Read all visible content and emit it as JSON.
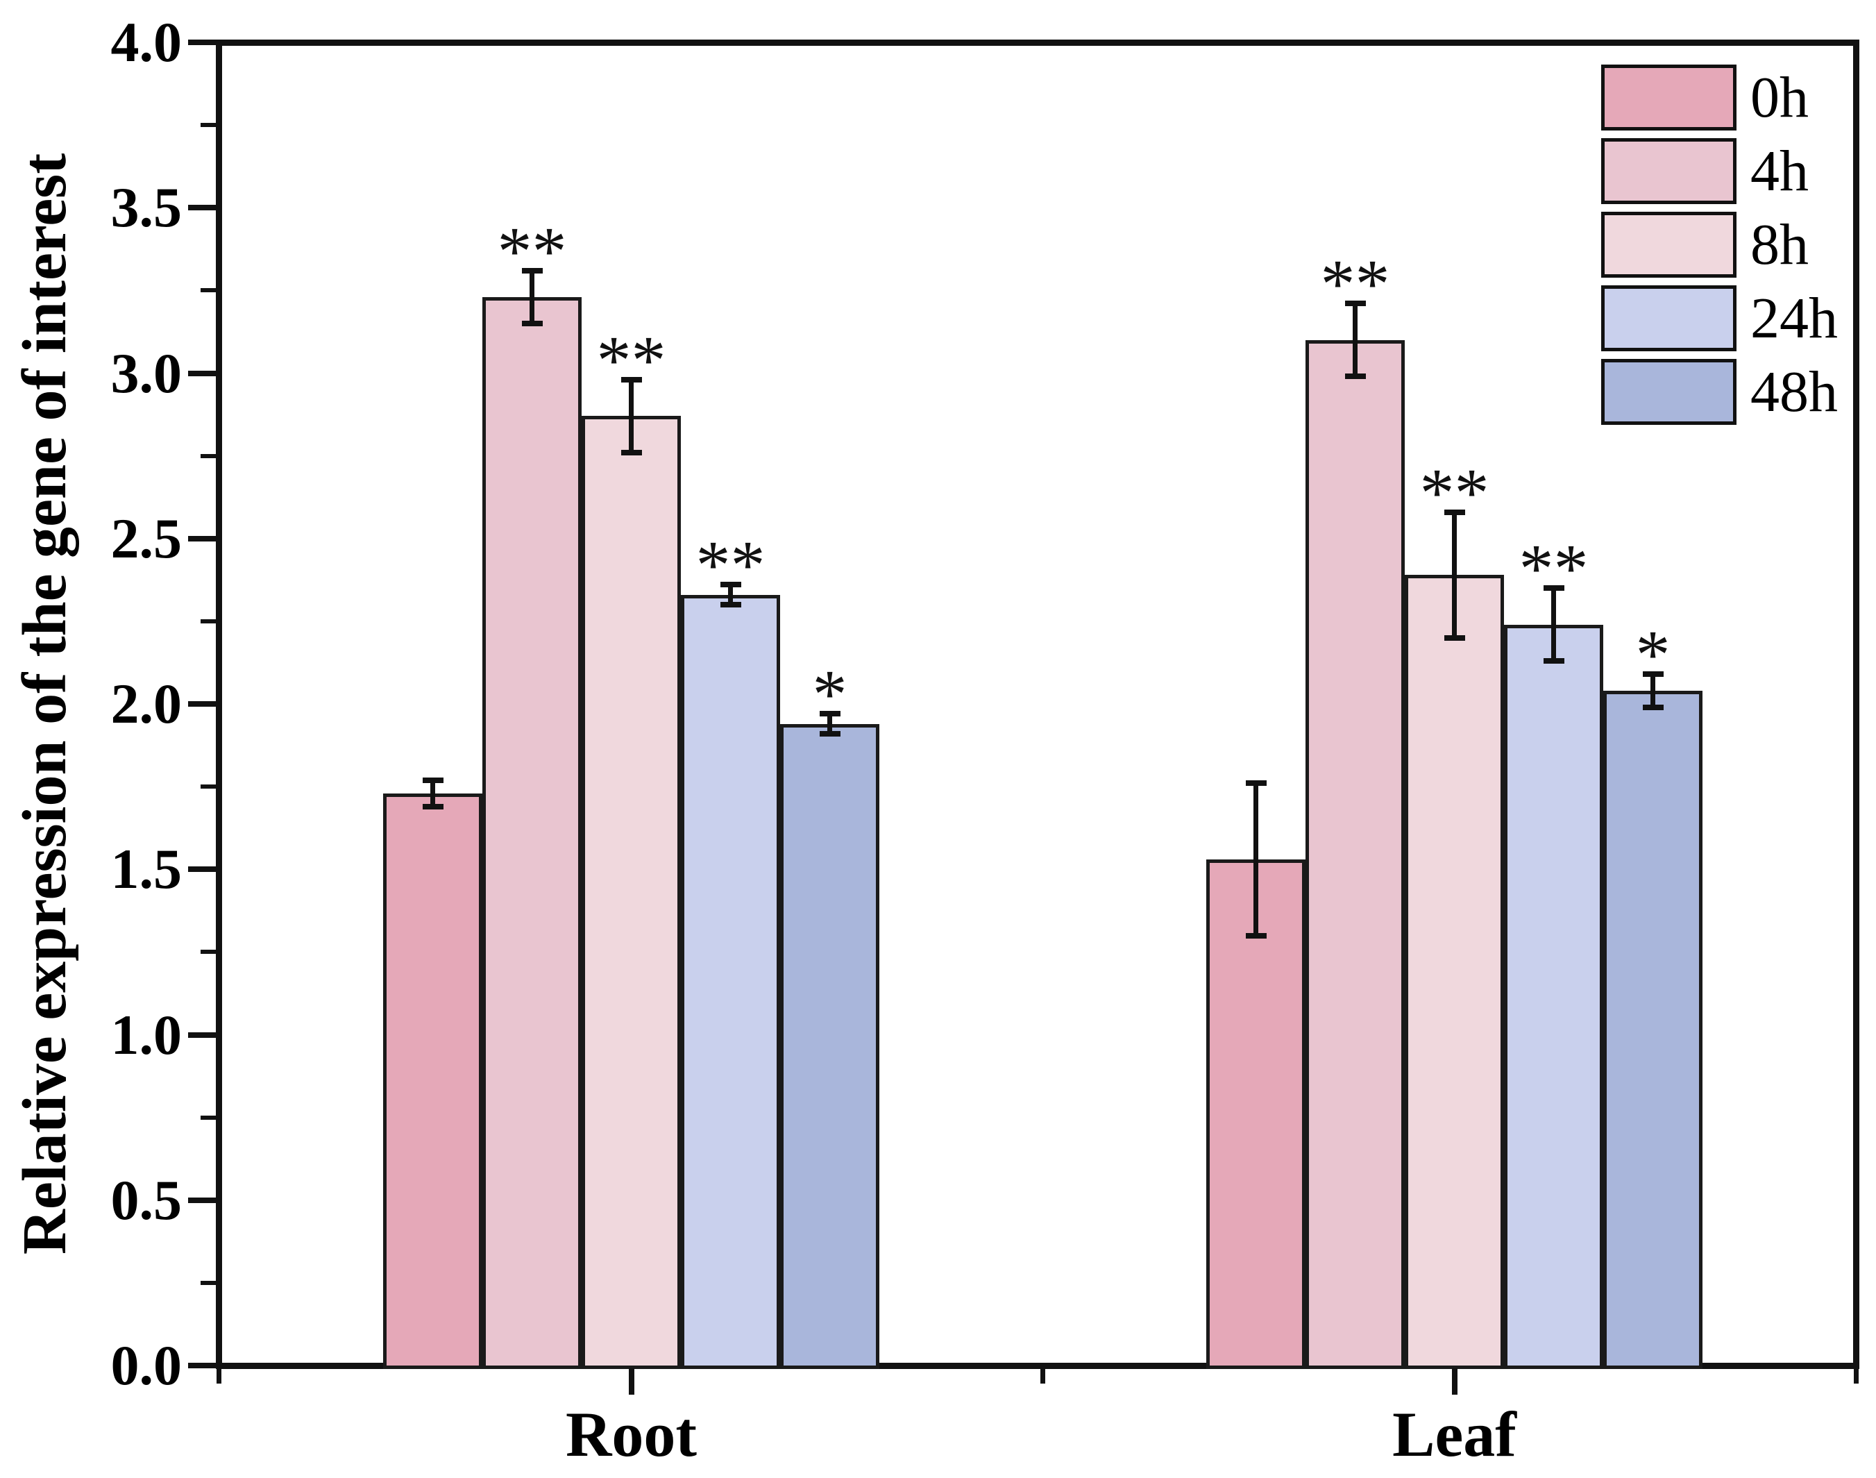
{
  "figure": {
    "background": "#ffffff",
    "axis_color": "#111111",
    "bar_edge_color": "#1a1a1a"
  },
  "chart_data": {
    "type": "bar",
    "title": "",
    "xlabel": "",
    "ylabel": "Relative expression of the gene of interest",
    "ylim": [
      0.0,
      4.0
    ],
    "y_major_step": 0.5,
    "y_minor_step": 0.25,
    "y_tick_labels": [
      "0.0",
      "0.5",
      "1.0",
      "1.5",
      "2.0",
      "2.5",
      "3.0",
      "3.5",
      "4.0"
    ],
    "grid": "off",
    "legend_position": "top-right",
    "error_bars": "visible",
    "categories": [
      "Root",
      "Leaf"
    ],
    "series": [
      {
        "name": "0h",
        "color": "#e5a8b8",
        "values": [
          1.73,
          1.53
        ],
        "errors": [
          0.04,
          0.23
        ],
        "significance": [
          "",
          ""
        ]
      },
      {
        "name": "4h",
        "color": "#e9c5d0",
        "values": [
          3.23,
          3.1
        ],
        "errors": [
          0.08,
          0.11
        ],
        "significance": [
          "**",
          "**"
        ]
      },
      {
        "name": "8h",
        "color": "#f0d8dd",
        "values": [
          2.87,
          2.39
        ],
        "errors": [
          0.11,
          0.19
        ],
        "significance": [
          "**",
          "**"
        ]
      },
      {
        "name": "24h",
        "color": "#c9d0ed",
        "values": [
          2.33,
          2.24
        ],
        "errors": [
          0.03,
          0.11
        ],
        "significance": [
          "**",
          "**"
        ]
      },
      {
        "name": "48h",
        "color": "#a9b6db",
        "values": [
          1.94,
          2.04
        ],
        "errors": [
          0.03,
          0.05
        ],
        "significance": [
          "*",
          "*"
        ]
      }
    ]
  }
}
